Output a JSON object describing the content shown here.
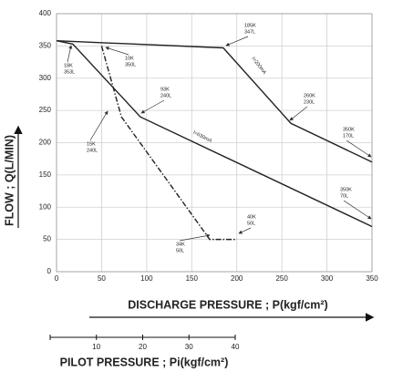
{
  "chart_data": {
    "type": "line",
    "x_label": "DISCHARGE PRESSURE ; P(kgf/cm²)",
    "y_label": "FLOW ; Q(L/MIN)",
    "xlim": [
      0,
      350
    ],
    "xticks": [
      0,
      50,
      100,
      150,
      200,
      250,
      300,
      350
    ],
    "ylim": [
      0,
      400
    ],
    "yticks": [
      0,
      50,
      100,
      150,
      200,
      250,
      300,
      350,
      400
    ],
    "grid": true,
    "series": [
      {
        "name": "I=200mA",
        "color": "#222222",
        "dash": "solid",
        "x": [
          0,
          185,
          260,
          350
        ],
        "values": [
          358,
          347,
          230,
          170
        ]
      },
      {
        "name": "I=630mA",
        "color": "#222222",
        "dash": "solid",
        "x": [
          0,
          18,
          93,
          350
        ],
        "values": [
          358,
          353,
          240,
          70
        ]
      },
      {
        "color": "#222222",
        "dash": "dashdot",
        "x": [
          50,
          72,
          170,
          200
        ],
        "values": [
          350,
          240,
          50,
          50
        ]
      }
    ],
    "annotations": [
      [
        "185K",
        "347L"
      ],
      [
        "18K",
        "353L"
      ],
      [
        "10K",
        "350L"
      ],
      [
        "93K",
        "240L"
      ],
      [
        "15K",
        "240L"
      ],
      [
        "260K",
        "230L"
      ],
      [
        "350K",
        "170L"
      ],
      [
        "350K",
        "70L"
      ],
      [
        "34K",
        "50L"
      ],
      [
        "40K",
        "50L"
      ]
    ],
    "pilot_axis": {
      "label": "PILOT PRESSURE ; Pi(kgf/cm²)",
      "xlim": [
        0,
        40
      ],
      "xticks": [
        10,
        20,
        30,
        40
      ]
    }
  }
}
